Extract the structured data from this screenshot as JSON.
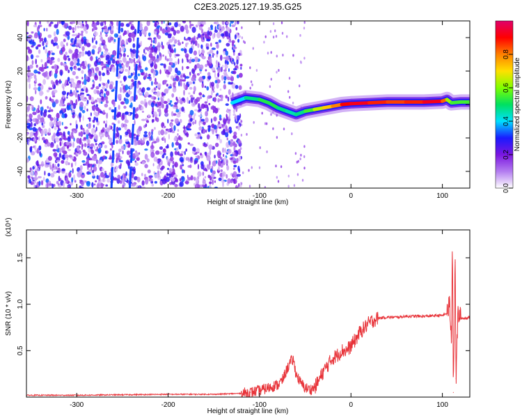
{
  "chart_data": [
    {
      "type": "heatmap",
      "title": "C2E3.2025.127.19.35.G25",
      "xlabel": "Height of straight line (km)",
      "ylabel": "Frequency (Hz)",
      "xlim": [
        -355,
        130
      ],
      "ylim": [
        -50,
        50
      ],
      "x_ticks": [
        -300,
        -200,
        -100,
        0,
        100
      ],
      "x_tick_labels": [
        "-300",
        "-200",
        "-100",
        "0",
        "100"
      ],
      "y_ticks": [
        -40,
        -20,
        0,
        20,
        40
      ],
      "y_tick_labels": [
        "-40",
        "-20",
        "0",
        "20",
        "40"
      ],
      "colorbar": {
        "label": "Normalized spectral amplitude",
        "range": [
          0,
          1
        ],
        "ticks": [
          0.0,
          0.2,
          0.4,
          0.6,
          0.8
        ],
        "tick_labels": [
          "0.0",
          "0.2",
          "0.4",
          "0.6",
          "0.8"
        ],
        "colors": [
          "#ffffff",
          "#b37cf0",
          "#7b16e0",
          "#1a1aff",
          "#00e0ff",
          "#00e060",
          "#7fff00",
          "#ffe000",
          "#ff8000",
          "#ff0000",
          "#e0006a"
        ]
      },
      "noise_region": {
        "x_from": -355,
        "x_to": -120,
        "level": 0.3
      },
      "diagonal_streaks": [
        {
          "x_top": -253,
          "y_top": 50,
          "x_bottom": -262,
          "y_bottom": -50
        },
        {
          "x_top": -232,
          "y_top": 50,
          "x_bottom": -242,
          "y_bottom": -50
        }
      ],
      "ridge": {
        "x": [
          -130,
          -115,
          -100,
          -90,
          -80,
          -70,
          -60,
          -50,
          -40,
          -30,
          -20,
          -10,
          0,
          20,
          40,
          60,
          80,
          100,
          105,
          110,
          120,
          130
        ],
        "frequency": [
          1,
          4,
          3,
          1,
          -2,
          -4,
          -6,
          -4,
          -3,
          -2,
          -1,
          0,
          0.5,
          1,
          1.5,
          1.5,
          1.5,
          2,
          3,
          1,
          1.5,
          1.5
        ],
        "amplitude": [
          0.35,
          0.45,
          0.5,
          0.55,
          0.5,
          0.45,
          0.45,
          0.5,
          0.6,
          0.7,
          0.75,
          0.85,
          0.95,
          0.9,
          0.85,
          0.85,
          0.9,
          0.95,
          0.7,
          0.55,
          0.55,
          0.55
        ]
      }
    },
    {
      "type": "line",
      "xlabel": "Height of straight line (km)",
      "ylabel": "SNR (10 * v/v)",
      "y_multiplier_label": "(x10⁴)",
      "xlim": [
        -355,
        130
      ],
      "ylim": [
        0,
        1.8
      ],
      "x_ticks": [
        -300,
        -200,
        -100,
        0,
        100
      ],
      "x_tick_labels": [
        "-300",
        "-200",
        "-100",
        "0",
        "100"
      ],
      "y_ticks": [
        0.5,
        1.0,
        1.5
      ],
      "y_tick_labels": [
        "0.5",
        "1.0",
        "1.5"
      ],
      "color": "#e8343a",
      "series": [
        {
          "x": [
            -355,
            -300,
            -250,
            -200,
            -150,
            -120,
            -110,
            -100,
            -90,
            -85,
            -80,
            -75,
            -70,
            -66,
            -63,
            -60,
            -55,
            -50,
            -45,
            -40,
            -35,
            -30,
            -25,
            -20,
            -15,
            -10,
            -5,
            0,
            5,
            10,
            15,
            20,
            25,
            30,
            40,
            50,
            60,
            80,
            100,
            105,
            108,
            110,
            111,
            112,
            114,
            115,
            117,
            120,
            125,
            130
          ],
          "y": [
            0.02,
            0.02,
            0.025,
            0.03,
            0.03,
            0.04,
            0.05,
            0.07,
            0.1,
            0.12,
            0.13,
            0.18,
            0.3,
            0.38,
            0.4,
            0.25,
            0.15,
            0.1,
            0.08,
            0.1,
            0.18,
            0.28,
            0.35,
            0.42,
            0.45,
            0.5,
            0.5,
            0.55,
            0.62,
            0.7,
            0.75,
            0.8,
            0.83,
            0.85,
            0.86,
            0.86,
            0.87,
            0.87,
            0.88,
            0.9,
            1.0,
            0.6,
            1.85,
            0.05,
            1.45,
            0.2,
            0.9,
            0.85,
            0.85,
            0.86
          ]
        }
      ]
    }
  ]
}
